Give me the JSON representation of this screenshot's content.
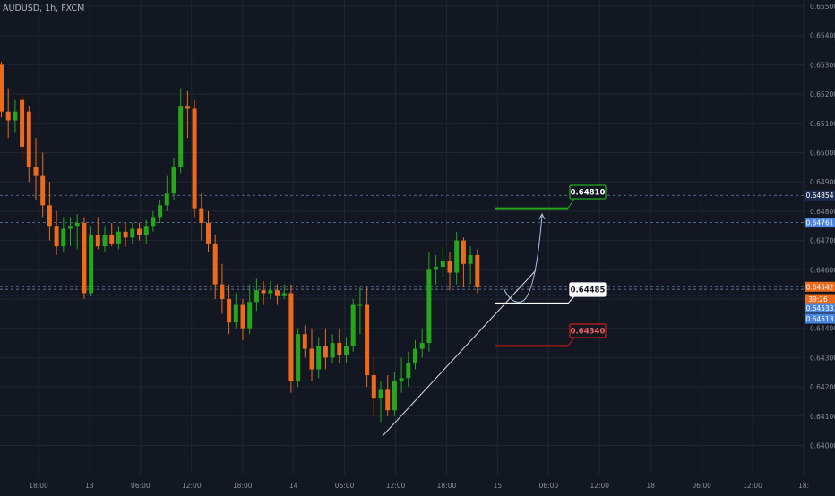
{
  "symbol": "AUDUSD, 1h, FXCM",
  "chart_data": {
    "type": "candlestick",
    "ylim": [
      0.6395,
      0.6556
    ],
    "y_ticks": [
      "0.65500",
      "0.65400",
      "0.65300",
      "0.65200",
      "0.65100",
      "0.65000",
      "0.64900",
      "0.64800",
      "0.64700",
      "0.64600",
      "0.64500",
      "0.64400",
      "0.64300",
      "0.64200",
      "0.64100",
      "0.64000"
    ],
    "x_ticks": [
      "18:00",
      "13",
      "06:00",
      "12:00",
      "18:00",
      "14",
      "06:00",
      "12:00",
      "18:00",
      "15",
      "06:00",
      "12:00",
      "18",
      "06:00",
      "12:00",
      "18:"
    ],
    "colors": {
      "up": "#26a61a",
      "down": "#ec6a1c",
      "grid": "#1f2533",
      "background": "#131722"
    },
    "candles": [
      [
        0.653,
        0.6531,
        0.6512,
        0.6514
      ],
      [
        0.6514,
        0.6522,
        0.6505,
        0.6511
      ],
      [
        0.6511,
        0.6518,
        0.6507,
        0.6514
      ],
      [
        0.6518,
        0.652,
        0.6498,
        0.6502
      ],
      [
        0.6514,
        0.6516,
        0.649,
        0.6495
      ],
      [
        0.6495,
        0.6505,
        0.6484,
        0.6492
      ],
      [
        0.6492,
        0.65,
        0.6478,
        0.6482
      ],
      [
        0.6482,
        0.649,
        0.647,
        0.6475
      ],
      [
        0.6475,
        0.648,
        0.6465,
        0.6468
      ],
      [
        0.6468,
        0.6478,
        0.6466,
        0.6474
      ],
      [
        0.6474,
        0.6478,
        0.6468,
        0.6475
      ],
      [
        0.6475,
        0.6479,
        0.6467,
        0.6476
      ],
      [
        0.6476,
        0.6478,
        0.645,
        0.6452
      ],
      [
        0.6452,
        0.6475,
        0.6451,
        0.6472
      ],
      [
        0.6472,
        0.6478,
        0.6467,
        0.6468
      ],
      [
        0.6468,
        0.6475,
        0.6466,
        0.6472
      ],
      [
        0.6472,
        0.6476,
        0.6468,
        0.6469
      ],
      [
        0.6469,
        0.6475,
        0.6467,
        0.6473
      ],
      [
        0.6473,
        0.6476,
        0.6468,
        0.6471
      ],
      [
        0.6471,
        0.6476,
        0.6469,
        0.6474
      ],
      [
        0.6474,
        0.6476,
        0.647,
        0.6472
      ],
      [
        0.6472,
        0.6477,
        0.6469,
        0.6475
      ],
      [
        0.6475,
        0.648,
        0.6473,
        0.6478
      ],
      [
        0.6478,
        0.6484,
        0.6476,
        0.6482
      ],
      [
        0.6482,
        0.6492,
        0.648,
        0.6486
      ],
      [
        0.6486,
        0.6498,
        0.6484,
        0.6495
      ],
      [
        0.6495,
        0.6522,
        0.6493,
        0.6516
      ],
      [
        0.6516,
        0.6521,
        0.6505,
        0.6515
      ],
      [
        0.6515,
        0.6518,
        0.6478,
        0.6481
      ],
      [
        0.6481,
        0.6486,
        0.647,
        0.6476
      ],
      [
        0.6476,
        0.648,
        0.6466,
        0.6469
      ],
      [
        0.6469,
        0.6472,
        0.645,
        0.6455
      ],
      [
        0.6455,
        0.6462,
        0.6445,
        0.645
      ],
      [
        0.645,
        0.6455,
        0.6438,
        0.6442
      ],
      [
        0.6442,
        0.6452,
        0.644,
        0.6448
      ],
      [
        0.6448,
        0.645,
        0.6436,
        0.644
      ],
      [
        0.644,
        0.6455,
        0.6438,
        0.6449
      ],
      [
        0.6449,
        0.6457,
        0.6446,
        0.6453
      ],
      [
        0.6453,
        0.6456,
        0.6448,
        0.6452
      ],
      [
        0.6452,
        0.6456,
        0.645,
        0.6453
      ],
      [
        0.6453,
        0.6455,
        0.6448,
        0.6451
      ],
      [
        0.6451,
        0.6455,
        0.645,
        0.6452
      ],
      [
        0.6452,
        0.6455,
        0.6418,
        0.6422
      ],
      [
        0.6422,
        0.644,
        0.642,
        0.6438
      ],
      [
        0.6438,
        0.6441,
        0.643,
        0.6433
      ],
      [
        0.6433,
        0.644,
        0.6422,
        0.6426
      ],
      [
        0.6426,
        0.6437,
        0.6423,
        0.6434
      ],
      [
        0.6434,
        0.644,
        0.6426,
        0.643
      ],
      [
        0.643,
        0.6438,
        0.6428,
        0.6435
      ],
      [
        0.6435,
        0.644,
        0.6428,
        0.6431
      ],
      [
        0.6431,
        0.6437,
        0.6428,
        0.6434
      ],
      [
        0.6434,
        0.645,
        0.6432,
        0.6448
      ],
      [
        0.6448,
        0.6454,
        0.6438,
        0.6448
      ],
      [
        0.6448,
        0.6454,
        0.642,
        0.6424
      ],
      [
        0.6424,
        0.643,
        0.641,
        0.6416
      ],
      [
        0.6416,
        0.6422,
        0.6408,
        0.6419
      ],
      [
        0.6419,
        0.6424,
        0.641,
        0.6412
      ],
      [
        0.6412,
        0.6425,
        0.641,
        0.6422
      ],
      [
        0.6422,
        0.643,
        0.6418,
        0.6423
      ],
      [
        0.6423,
        0.6432,
        0.642,
        0.6428
      ],
      [
        0.6428,
        0.6436,
        0.6426,
        0.6433
      ],
      [
        0.6433,
        0.644,
        0.643,
        0.6435
      ],
      [
        0.6435,
        0.6466,
        0.6432,
        0.646
      ],
      [
        0.646,
        0.6465,
        0.6455,
        0.6461
      ],
      [
        0.6461,
        0.6468,
        0.6457,
        0.6463
      ],
      [
        0.6463,
        0.6466,
        0.6453,
        0.6459
      ],
      [
        0.6459,
        0.6473,
        0.6455,
        0.647
      ],
      [
        0.647,
        0.6471,
        0.6454,
        0.6462
      ],
      [
        0.6462,
        0.6468,
        0.6455,
        0.6465
      ],
      [
        0.6465,
        0.6467,
        0.6452,
        0.6454
      ]
    ],
    "levels": [
      {
        "label": "0.64854",
        "value": 0.64854,
        "color": "#7ca2d4",
        "tag_bg": "#1e2d52",
        "tag_text": "#ffffff"
      },
      {
        "label": "0.64761",
        "value": 0.64761,
        "color": "#7ca2d4",
        "tag_bg": "#4a86e0",
        "tag_text": "#ffffff"
      },
      {
        "label": "0.64542",
        "value": 0.64542,
        "color": "#7ca2d4",
        "tag_bg": "#ec6a1c",
        "tag_text": "#ffffff"
      },
      {
        "label": "0.64533",
        "value": 0.64533,
        "color": "#7ca2d4",
        "tag_bg": "#4a86e0",
        "tag_text": "#ffffff"
      },
      {
        "label": "0.64513",
        "value": 0.64513,
        "color": "#7ca2d4",
        "tag_bg": "#4a86e0",
        "tag_text": "#ffffff"
      }
    ],
    "countdown": "39:26",
    "annotations": [
      {
        "label": "0.64810",
        "value": 0.6481,
        "color": "#25a81a",
        "text_color": "#ffffff"
      },
      {
        "label": "0.64485",
        "value": 0.64485,
        "color": "#ffffff",
        "text_color": "#131722"
      },
      {
        "label": "0.64340",
        "value": 0.6434,
        "color": "#c41c1c",
        "text_color": "#f06060"
      }
    ]
  }
}
